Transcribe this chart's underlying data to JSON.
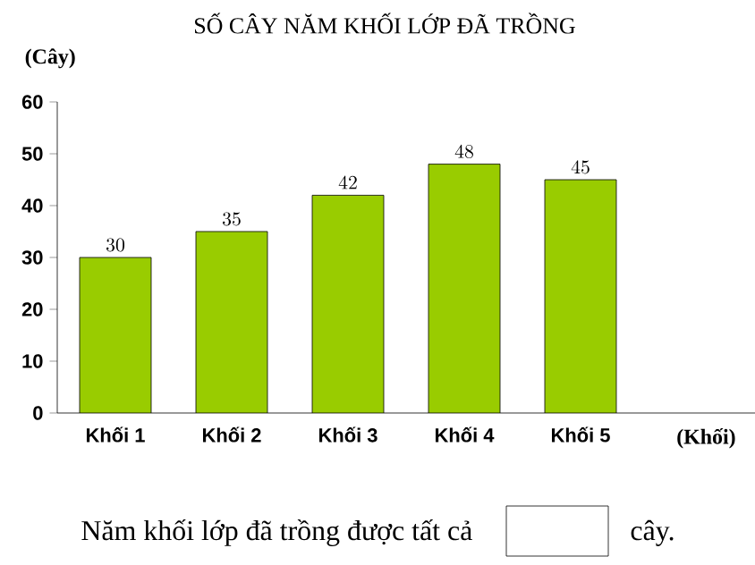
{
  "chart_data": {
    "type": "bar",
    "title": "SỐ CÂY NĂM KHỐI LỚP ĐÃ TRỒNG",
    "ylabel": "(Cây)",
    "xlabel": "(Khối)",
    "categories": [
      "Khối 1",
      "Khối 2",
      "Khối 3",
      "Khối 4",
      "Khối 5"
    ],
    "values": [
      30,
      35,
      42,
      48,
      45
    ],
    "color": "#99cc00",
    "ylim": [
      0,
      60
    ],
    "yticks": [
      0,
      10,
      20,
      30,
      40,
      50,
      60
    ],
    "data_labels": true,
    "annotations": [
      "Năm khối lớp đã trồng được tất cả",
      "cây."
    ]
  }
}
